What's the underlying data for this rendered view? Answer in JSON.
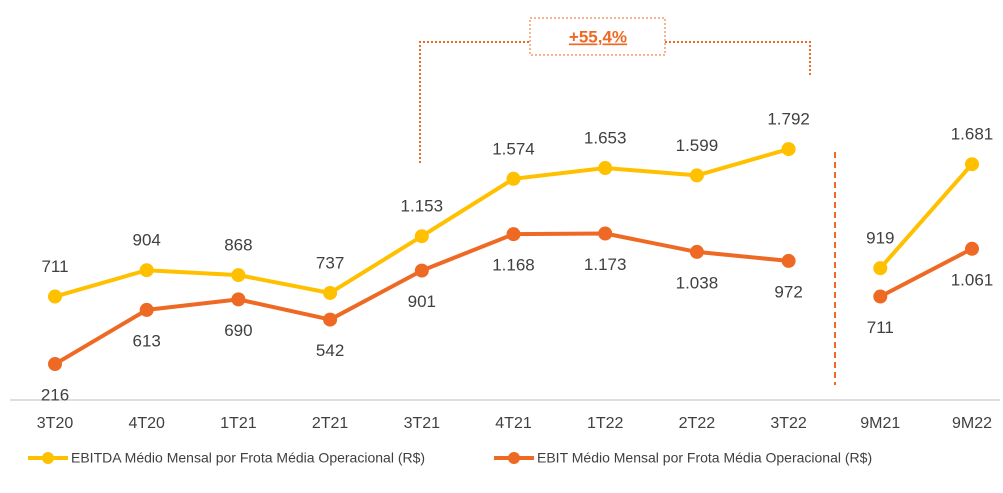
{
  "chart_data": {
    "type": "line",
    "categories": [
      "3T20",
      "4T20",
      "1T21",
      "2T21",
      "3T21",
      "4T21",
      "1T22",
      "2T22",
      "3T22",
      "9M21",
      "9M22"
    ],
    "divider_index": 9,
    "series": [
      {
        "name": "EBITDA Médio Mensal por Frota Média Operacional (R$)",
        "color": "#FFC000",
        "values": [
          711,
          904,
          868,
          737,
          1153,
          1574,
          1653,
          1599,
          1792,
          919,
          1681
        ],
        "value_labels": [
          "711",
          "904",
          "868",
          "737",
          "1.153",
          "1.574",
          "1.653",
          "1.599",
          "1.792",
          "919",
          "1.681"
        ]
      },
      {
        "name": "EBIT Médio Mensal por Frota Média Operacional (R$)",
        "color": "#EE6A24",
        "values": [
          216,
          613,
          690,
          542,
          901,
          1168,
          1173,
          1038,
          972,
          711,
          1061
        ],
        "value_labels": [
          "216",
          "613",
          "690",
          "542",
          "901",
          "1.168",
          "1.173",
          "1.038",
          "972",
          "711",
          "1.061"
        ]
      }
    ],
    "annotation": "+55,4%",
    "ylim": [
      0,
      2665
    ]
  }
}
